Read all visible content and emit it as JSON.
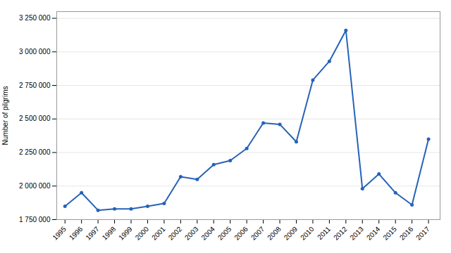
{
  "chart_data": {
    "type": "line",
    "x": [
      1995,
      1996,
      1997,
      1998,
      1999,
      2000,
      2001,
      2002,
      2003,
      2004,
      2005,
      2006,
      2007,
      2008,
      2009,
      2010,
      2011,
      2012,
      2013,
      2014,
      2015,
      2016,
      2017
    ],
    "values": [
      1850000,
      1950000,
      1820000,
      1830000,
      1830000,
      1850000,
      1870000,
      2070000,
      2050000,
      2160000,
      2190000,
      2280000,
      2470000,
      2460000,
      2330000,
      2790000,
      2930000,
      3160000,
      1980000,
      2090000,
      1950000,
      1860000,
      2350000
    ],
    "color": "#2563b8",
    "marker": "circle",
    "ylabel": "Number of pilgrims",
    "xlim": [
      1994.5,
      2017.7
    ],
    "xticks": [
      1995,
      1996,
      1997,
      1998,
      1999,
      2000,
      2001,
      2002,
      2003,
      2004,
      2005,
      2006,
      2007,
      2008,
      2009,
      2010,
      2011,
      2012,
      2013,
      2014,
      2015,
      2016,
      2017
    ],
    "ylim": [
      1750000,
      3300000
    ],
    "yticks": [
      {
        "value": 1750000,
        "label": "1 750 000"
      },
      {
        "value": 2000000,
        "label": "2 000 000"
      },
      {
        "value": 2250000,
        "label": "2 250 000"
      },
      {
        "value": 2500000,
        "label": "2 500 000"
      },
      {
        "value": 2750000,
        "label": "2 750 000"
      },
      {
        "value": 3000000,
        "label": "3 000 000"
      },
      {
        "value": 3250000,
        "label": "3 250 000"
      }
    ],
    "grid": true
  }
}
